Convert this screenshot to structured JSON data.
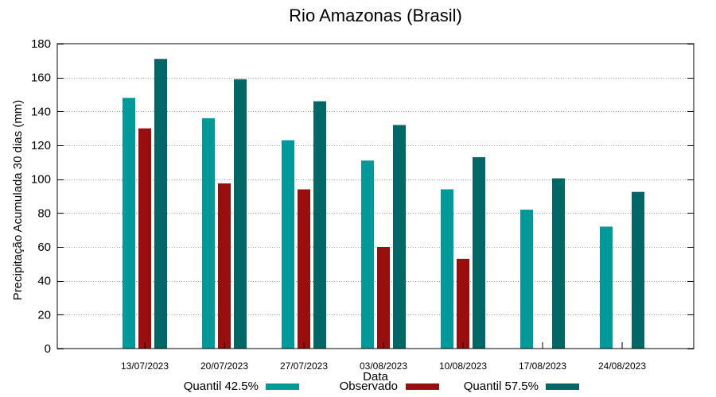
{
  "chart_data": {
    "type": "bar",
    "title": "Rio Amazonas (Brasil)",
    "xlabel": "Data",
    "ylabel": "Precipitação Acumulada 30 dias (mm)",
    "ylim": [
      0,
      180
    ],
    "yticks": [
      0,
      20,
      40,
      60,
      80,
      100,
      120,
      140,
      160,
      180
    ],
    "grid": true,
    "legend_position": "bottom",
    "categories": [
      "13/07/2023",
      "20/07/2023",
      "27/07/2023",
      "03/08/2023",
      "10/08/2023",
      "17/08/2023",
      "24/08/2023"
    ],
    "series": [
      {
        "name": "Quantil 42.5%",
        "color": "#009999",
        "values": [
          148,
          136,
          123,
          111,
          94,
          82,
          72
        ]
      },
      {
        "name": "Observado",
        "color": "#990f0f",
        "values": [
          130,
          97.5,
          94,
          60,
          53,
          null,
          null
        ]
      },
      {
        "name": "Quantil 57.5%",
        "color": "#006666",
        "values": [
          171,
          159,
          146,
          132,
          113,
          100.5,
          92.5
        ]
      }
    ]
  }
}
